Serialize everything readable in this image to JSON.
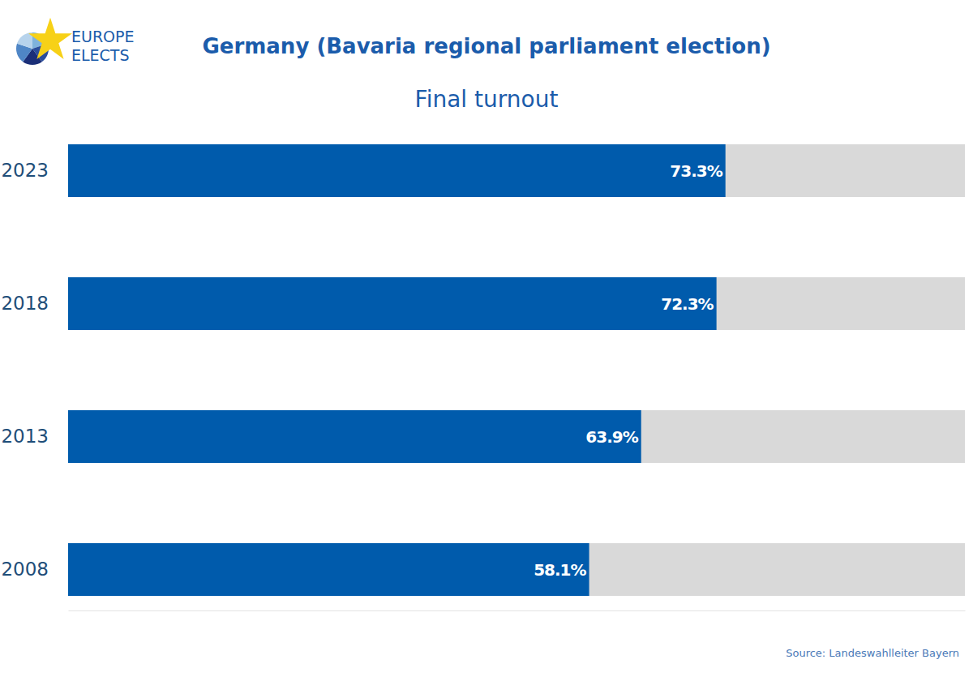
{
  "chart_data": {
    "type": "bar",
    "title": "Germany (Bavaria regional parliament election)",
    "subtitle": "Final turnout",
    "categories": [
      "2023",
      "2018",
      "2013",
      "2008"
    ],
    "values": [
      73.3,
      72.3,
      63.9,
      58.1
    ],
    "value_labels": [
      "73.3%",
      "72.3%",
      "63.9%",
      "58.1%"
    ],
    "color": "#005bac",
    "orientation": "horizontal",
    "data_labels": true,
    "xlim": [
      0,
      100
    ],
    "tick_labels": "y",
    "grid": false,
    "annotations": [
      "EUROPE",
      "ELECTS",
      "Source: Landeswahlleiter Bayern"
    ]
  }
}
